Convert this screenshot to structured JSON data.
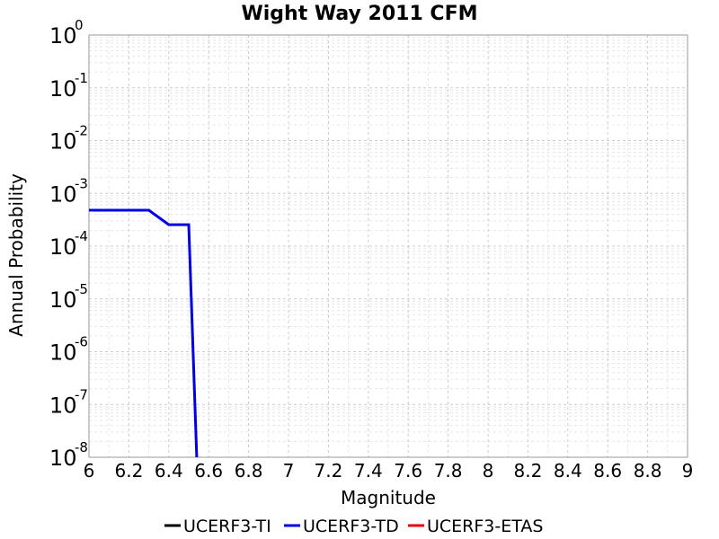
{
  "chart_data": {
    "type": "line",
    "title": "Wight Way 2011 CFM",
    "xlabel": "Magnitude",
    "ylabel": "Annual Probability",
    "xlim": [
      6,
      9
    ],
    "ylim": [
      1e-08,
      1
    ],
    "y_scale": "log",
    "grid": true,
    "legend_position": "bottom",
    "x_ticks": [
      "6",
      "6.2",
      "6.4",
      "6.6",
      "6.8",
      "7",
      "7.2",
      "7.4",
      "7.6",
      "7.8",
      "8",
      "8.2",
      "8.4",
      "8.6",
      "8.8",
      "9"
    ],
    "y_ticks": [
      {
        "base": "10",
        "exp": "0"
      },
      {
        "base": "10",
        "exp": "-1"
      },
      {
        "base": "10",
        "exp": "-2"
      },
      {
        "base": "10",
        "exp": "-3"
      },
      {
        "base": "10",
        "exp": "-4"
      },
      {
        "base": "10",
        "exp": "-5"
      },
      {
        "base": "10",
        "exp": "-6"
      },
      {
        "base": "10",
        "exp": "-7"
      },
      {
        "base": "10",
        "exp": "-8"
      }
    ],
    "series": [
      {
        "name": "UCERF3-TI",
        "color": "#000000",
        "x": [],
        "y": []
      },
      {
        "name": "UCERF3-TD",
        "color": "#0000e6",
        "x": [
          6.0,
          6.1,
          6.2,
          6.3,
          6.4,
          6.5,
          6.54
        ],
        "y": [
          0.00048,
          0.00048,
          0.00048,
          0.00048,
          0.000255,
          0.000255,
          1e-08
        ]
      },
      {
        "name": "UCERF3-ETAS",
        "color": "#e60000",
        "x": [],
        "y": []
      }
    ]
  }
}
